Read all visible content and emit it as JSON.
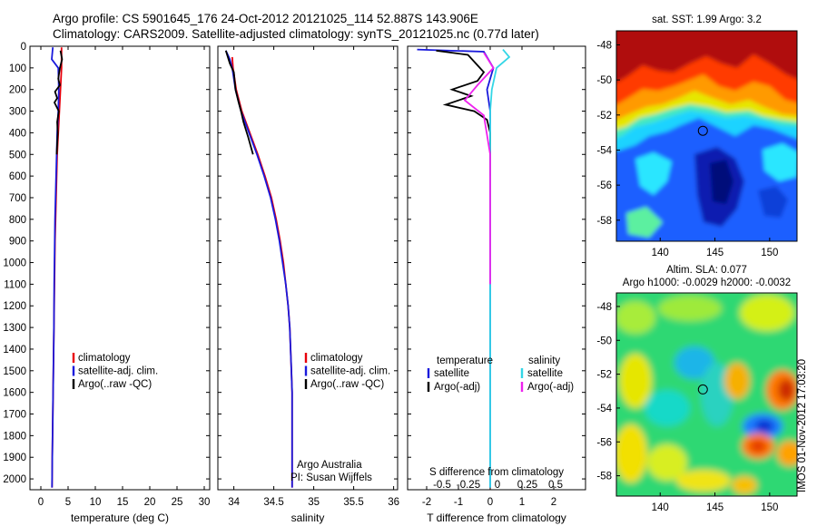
{
  "header": {
    "line1": "Argo profile: CS 5901645_176 24-Oct-2012 20121025_114 52.887S 143.906E",
    "line2": "Climatology: CARS2009. Satellite-adjusted climatology: synTS_20121025.nc (0.77d later)"
  },
  "stamp": "IMOS 01-Nov-2012 17:03:20",
  "credit": {
    "line1": "Argo Australia",
    "line2": "PI: Susan Wijffels"
  },
  "colors": {
    "climatology": "#e8000b",
    "satellite": "#1a1adc",
    "argo": "#000000",
    "sat_salinity": "#33d6e6",
    "argo_salinity": "#ee22ee"
  },
  "chart_data": [
    {
      "type": "line",
      "id": "temperature",
      "xlabel": "temperature (deg C)",
      "ylabel": "",
      "xlim": [
        -2,
        31
      ],
      "ylim": [
        2050,
        0
      ],
      "xticks": [
        0,
        5,
        10,
        15,
        20,
        25,
        30
      ],
      "yticks": [
        0,
        100,
        200,
        300,
        400,
        500,
        600,
        700,
        800,
        900,
        1000,
        1100,
        1200,
        1300,
        1400,
        1500,
        1600,
        1700,
        1800,
        1900,
        2000
      ],
      "legend": [
        "climatology",
        "satellite-adj. clim.",
        "Argo(..raw -QC)"
      ],
      "series": [
        {
          "name": "climatology",
          "x": [
            3.8,
            3.8,
            3.6,
            3.4,
            3.2,
            3.0,
            2.9,
            2.8,
            2.7,
            2.6,
            2.55,
            2.5,
            2.45,
            2.4,
            2.35,
            2.3,
            2.25,
            2.2,
            2.15,
            2.1,
            2.05
          ],
          "y": [
            5,
            100,
            200,
            300,
            400,
            500,
            600,
            700,
            800,
            900,
            1000,
            1100,
            1200,
            1300,
            1400,
            1500,
            1600,
            1700,
            1800,
            1900,
            2040
          ]
        },
        {
          "name": "satellite-adj. clim.",
          "x": [
            2.2,
            2.0,
            3.2,
            3.3,
            3.2,
            3.0,
            2.9,
            2.8,
            2.7,
            2.6,
            2.55,
            2.5,
            2.45,
            2.4,
            2.35,
            2.3,
            2.25,
            2.2,
            2.15,
            2.1,
            2.05
          ],
          "y": [
            5,
            60,
            100,
            200,
            300,
            400,
            500,
            600,
            700,
            800,
            900,
            1000,
            1100,
            1300,
            1400,
            1500,
            1600,
            1700,
            1800,
            1900,
            2040
          ]
        },
        {
          "name": "Argo(..raw -QC)",
          "x": [
            3.6,
            3.9,
            3.5,
            3.2,
            3.5,
            2.6,
            3.0,
            2.5,
            3.3,
            3.0,
            3.1,
            3.0,
            2.9
          ],
          "y": [
            20,
            60,
            100,
            150,
            180,
            210,
            240,
            260,
            300,
            350,
            400,
            450,
            500
          ]
        }
      ]
    },
    {
      "type": "line",
      "id": "salinity",
      "xlabel": "salinity",
      "xlim": [
        33.8,
        36.05
      ],
      "ylim": [
        2050,
        0
      ],
      "xticks": [
        34,
        34.5,
        35,
        35.5,
        36
      ],
      "legend": [
        "climatology",
        "satellite-adj. clim.",
        "Argo(..raw -QC)"
      ],
      "series": [
        {
          "name": "climatology",
          "x": [
            33.98,
            33.99,
            34.03,
            34.1,
            34.2,
            34.3,
            34.39,
            34.47,
            34.53,
            34.58,
            34.62,
            34.65,
            34.68,
            34.7,
            34.71,
            34.72,
            34.73,
            34.73,
            34.73,
            34.73,
            34.73
          ],
          "y": [
            50,
            100,
            200,
            300,
            400,
            500,
            600,
            700,
            800,
            900,
            1000,
            1100,
            1200,
            1300,
            1400,
            1500,
            1600,
            1700,
            1800,
            1900,
            2040
          ]
        },
        {
          "name": "satellite-adj. clim.",
          "x": [
            33.9,
            33.95,
            33.98,
            34.02,
            34.09,
            34.19,
            34.29,
            34.38,
            34.46,
            34.52,
            34.57,
            34.61,
            34.65,
            34.68,
            34.7,
            34.71,
            34.72,
            34.73,
            34.73,
            34.73,
            34.73
          ],
          "y": [
            20,
            60,
            100,
            200,
            300,
            400,
            500,
            600,
            700,
            800,
            900,
            1000,
            1100,
            1200,
            1300,
            1400,
            1500,
            1600,
            1700,
            1800,
            2040
          ]
        },
        {
          "name": "Argo(..raw -QC)",
          "x": [
            33.9,
            33.95,
            34.0,
            34.02,
            34.06,
            34.09,
            34.12,
            34.18,
            34.24
          ],
          "y": [
            20,
            80,
            120,
            200,
            260,
            300,
            350,
            420,
            500
          ]
        }
      ]
    },
    {
      "type": "line",
      "id": "difference",
      "xlabel": "T difference from climatology",
      "xlabel_top": "S difference from climatology",
      "xlim": [
        -2.6,
        3
      ],
      "ylim": [
        2050,
        0
      ],
      "xticks": [
        -2,
        -1,
        0,
        1,
        2
      ],
      "xticks_top": [
        "-0.5",
        "-0.25",
        "0",
        "0.25",
        "0.5"
      ],
      "legend_headers": [
        "temperature",
        "salinity"
      ],
      "legend": [
        "satellite",
        "Argo(-adj)",
        "satellite",
        "Argo(-adj)"
      ],
      "series": [
        {
          "name": "satellite",
          "x": [
            -2.3,
            -0.2,
            0.1,
            -0.1,
            0.0,
            0.0,
            0.0,
            0.0,
            0.0
          ],
          "y": [
            15,
            25,
            100,
            200,
            300,
            500,
            800,
            1500,
            2040
          ]
        },
        {
          "name": "Argo(-adj)",
          "x": [
            -1.7,
            -0.7,
            -0.2,
            -0.4,
            -1.2,
            -0.6,
            -1.4,
            -0.5,
            -0.1,
            0.0,
            0.0
          ],
          "y": [
            20,
            40,
            120,
            160,
            200,
            230,
            270,
            300,
            340,
            400,
            600
          ]
        },
        {
          "name": "satellite",
          "x": [
            0.4,
            0.6,
            0.2,
            0.05,
            0.0,
            0.0,
            0.0,
            0.0
          ],
          "y": [
            15,
            50,
            100,
            200,
            300,
            600,
            1500,
            2040
          ]
        },
        {
          "name": "Argo(-adj)",
          "x": [
            -0.2,
            0.1,
            -0.4,
            -0.8,
            -0.2,
            0.0,
            0.0
          ],
          "y": [
            30,
            100,
            180,
            250,
            320,
            500,
            1100
          ]
        }
      ]
    },
    {
      "type": "heatmap",
      "id": "sst",
      "title": "sat. SST: 1.99 Argo: 3.2",
      "xlim": [
        136,
        152.5
      ],
      "ylim": [
        -59.2,
        -47.2
      ],
      "xticks": [
        140,
        145,
        150
      ],
      "yticks": [
        -48,
        -50,
        -52,
        -54,
        -56,
        -58
      ],
      "marker": {
        "lon": 143.9,
        "lat": -52.9
      }
    },
    {
      "type": "heatmap",
      "id": "sla",
      "title": "Altim. SLA: 0.077",
      "subtitle": "Argo h1000: -0.0029 h2000: -0.0032",
      "xlim": [
        136,
        152.5
      ],
      "ylim": [
        -59.2,
        -47.2
      ],
      "xticks": [
        140,
        145,
        150
      ],
      "yticks": [
        -48,
        -50,
        -52,
        -54,
        -56,
        -58
      ],
      "marker": {
        "lon": 143.9,
        "lat": -52.9
      }
    }
  ]
}
